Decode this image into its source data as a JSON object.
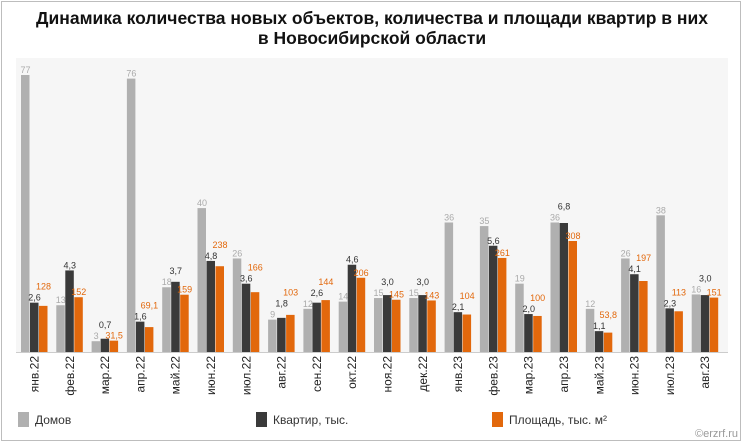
{
  "title_line1": "Динамика количества новых объектов, количества и площади квартир в них",
  "title_line2": "в Новосибирской области",
  "watermark": "©erzrf.ru",
  "colors": {
    "Домов": "#b0b0b0",
    "Квартир, тыс.": "#3a3a3a",
    "Площадь, тыс. м²": "#e2680c",
    "plot_bg": "#f6f6f6"
  },
  "chart_data": {
    "type": "bar",
    "categories": [
      "янв.22",
      "фев.22",
      "мар.22",
      "апр.22",
      "май.22",
      "июн.22",
      "июл.22",
      "авг.22",
      "сен.22",
      "окт.22",
      "ноя.22",
      "дек.22",
      "янв.23",
      "фев.23",
      "мар.23",
      "апр.23",
      "май.23",
      "июн.23",
      "июл.23",
      "авг.23"
    ],
    "series": [
      {
        "name": "Домов",
        "values": [
          77,
          13,
          3,
          76,
          18,
          40,
          26,
          9,
          12,
          14,
          15,
          15,
          36,
          35,
          19,
          36,
          12,
          26,
          38,
          16
        ],
        "labels": [
          "77",
          "13",
          "3",
          "76",
          "18",
          "40",
          "26",
          "9",
          "12",
          "14",
          "15",
          "15",
          "36",
          "35",
          "19",
          "36",
          "12",
          "26",
          "38",
          "16"
        ]
      },
      {
        "name": "Квартир, тыс.",
        "values": [
          2.6,
          4.3,
          0.7,
          1.6,
          3.7,
          4.8,
          3.6,
          1.8,
          2.6,
          4.6,
          3.0,
          3.0,
          2.1,
          5.6,
          2.0,
          6.8,
          1.1,
          4.1,
          2.3,
          3.0
        ],
        "labels": [
          "2,6",
          "4,3",
          "0,7",
          "1,6",
          "3,7",
          "4,8",
          "3,6",
          "1,8",
          "2,6",
          "4,6",
          "3,0",
          "3,0",
          "2,1",
          "5,6",
          "2,0",
          "6,8",
          "1,1",
          "4,1",
          "2,3",
          "3,0"
        ]
      },
      {
        "name": "Площадь, тыс. м²",
        "values": [
          128,
          152,
          31.5,
          69.1,
          159,
          238,
          166,
          103,
          144,
          206,
          145,
          143,
          104,
          261,
          100,
          308,
          53.8,
          197,
          113,
          151
        ],
        "labels": [
          "128",
          "152",
          "31,5",
          "69,1",
          "159",
          "238",
          "166",
          "103",
          "144",
          "206",
          "145",
          "143",
          "104",
          "261",
          "100",
          "308",
          "53,8",
          "197",
          "113",
          "151"
        ]
      }
    ],
    "legend_position": "bottom",
    "grid": false,
    "y_axis_shown": false
  },
  "legend": [
    "Домов",
    "Квартир, тыс.",
    "Площадь, тыс. м²"
  ]
}
